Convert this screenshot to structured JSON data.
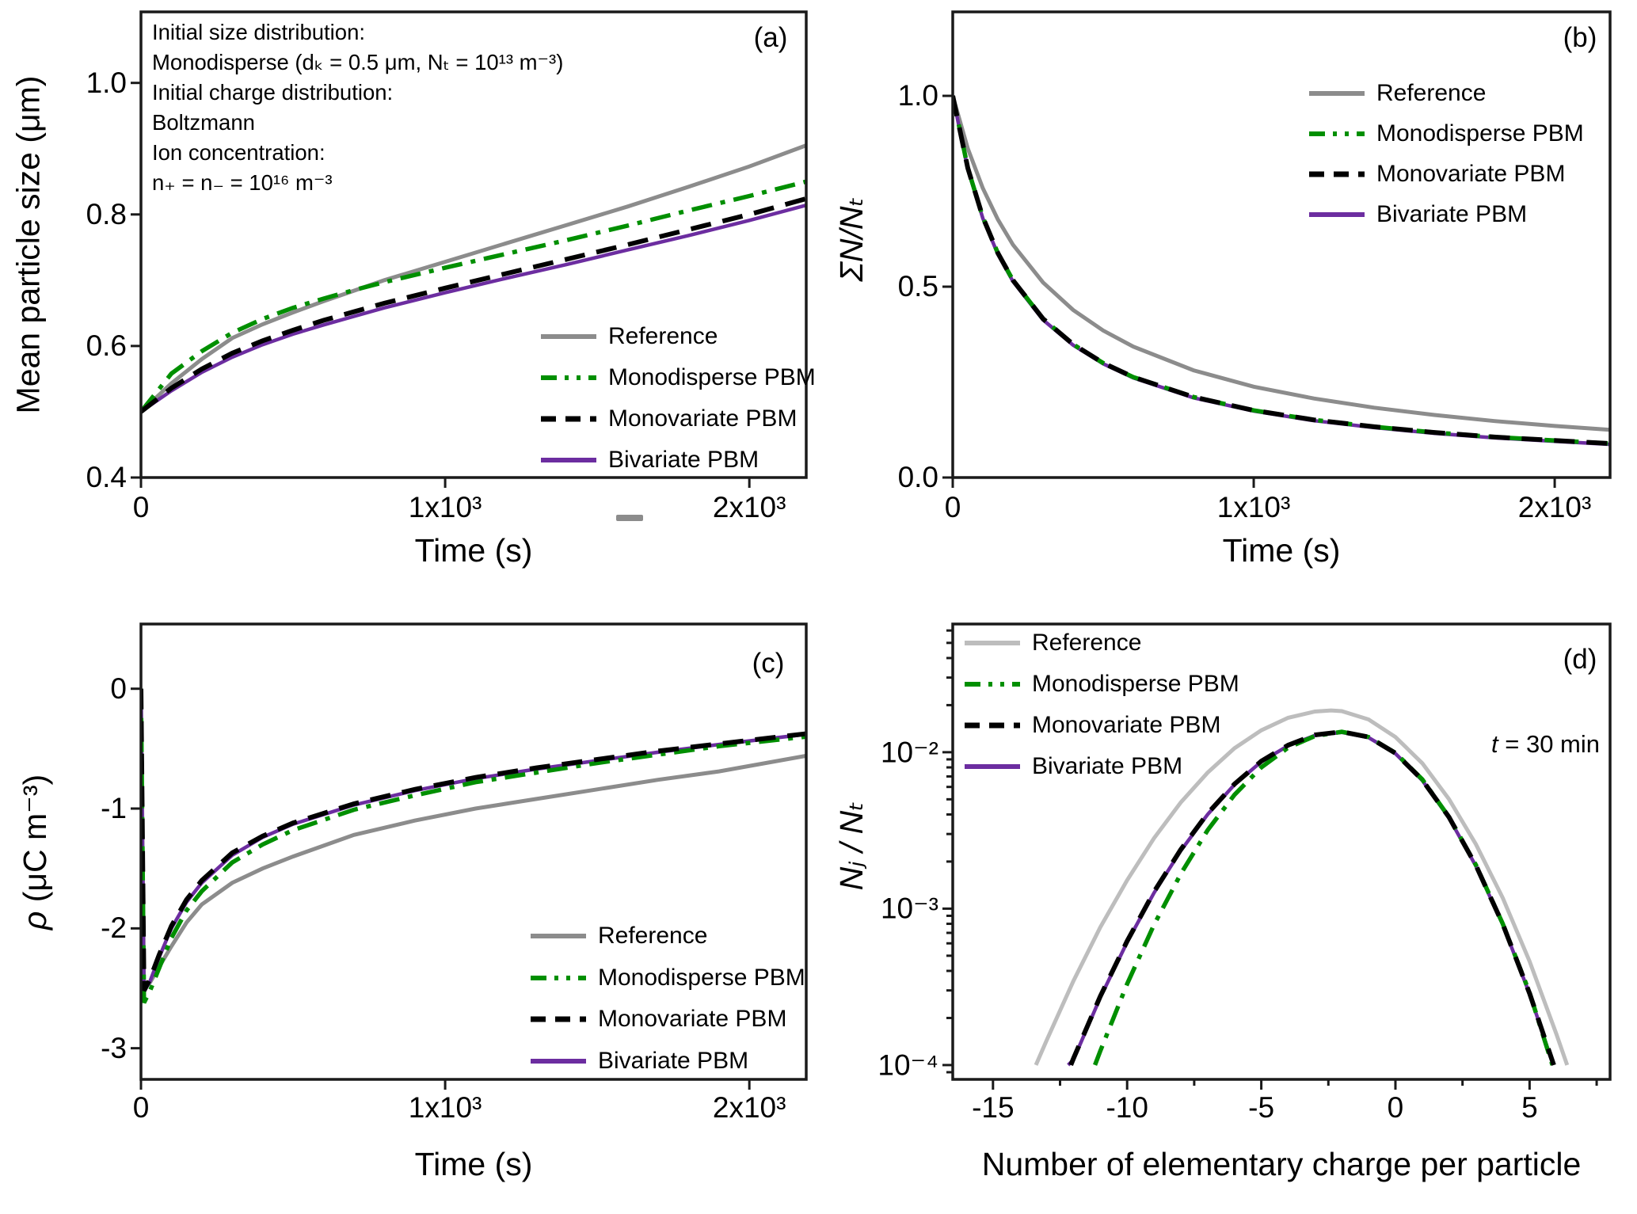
{
  "figure_background": "#ffffff",
  "colors": {
    "reference": "#8c8c8c",
    "reference_light": "#bdbdbd",
    "monodisperse": "#008f00",
    "monovariate": "#000000",
    "bivariate": "#6c2da0",
    "axis": "#1a1a1a"
  },
  "legend_labels": [
    "Reference",
    "Monodisperse PBM",
    "Monovariate PBM",
    "Bivariate PBM"
  ],
  "panels": {
    "a": {
      "letter": "(a)",
      "xlabel": "Time (s)",
      "ylabel": "Mean particle size (μm)",
      "annotation_lines": [
        "Initial size distribution:",
        "Monodisperse (dₖ = 0.5 μm, Nₜ = 10¹³ m⁻³)",
        "Initial charge distribution:",
        "Boltzmann",
        "Ion concentration:",
        "n₊ = n₋ = 10¹⁶ m⁻³"
      ]
    },
    "b": {
      "letter": "(b)",
      "xlabel": "Time (s)",
      "ylabel": "ΣN/Nₜ"
    },
    "c": {
      "letter": "(c)",
      "xlabel": "Time (s)",
      "ylabel_rho": "ρ",
      "ylabel_units": " (μC m⁻³)"
    },
    "d": {
      "letter": "(d)",
      "xlabel": "Number of elementary charge per particle",
      "ylabel": "Nⱼ / Nₜ",
      "time_label_var": "t",
      "time_label_rest": " = 30 min"
    }
  },
  "chart_data": [
    {
      "id": "a",
      "type": "line",
      "title": "(a)",
      "xlabel": "Time (s)",
      "ylabel": "Mean particle size (μm)",
      "xlim": [
        0,
        2187
      ],
      "ylim": [
        0.4,
        1.108
      ],
      "ylog": false,
      "grid": false,
      "legend_position": "lower-right",
      "xticks": [
        {
          "v": 0,
          "label": "0"
        },
        {
          "v": 1000,
          "label": "1x10³"
        },
        {
          "v": 2000,
          "label": "2x10³"
        }
      ],
      "yticks": [
        {
          "v": 0.4,
          "label": "0.4"
        },
        {
          "v": 0.6,
          "label": "0.6"
        },
        {
          "v": 0.8,
          "label": "0.8"
        },
        {
          "v": 1.0,
          "label": "1.0"
        }
      ],
      "xminor": [],
      "yminor": [],
      "draw_order": [
        0,
        3,
        1,
        2
      ],
      "series": [
        {
          "name": "Reference",
          "style": "solid",
          "color": "#8c8c8c",
          "lw": 5,
          "x": [
            0,
            100,
            200,
            300,
            400,
            500,
            600,
            700,
            800,
            1000,
            1200,
            1400,
            1600,
            1800,
            2000,
            2187
          ],
          "y": [
            0.5,
            0.543,
            0.58,
            0.612,
            0.633,
            0.651,
            0.668,
            0.684,
            0.7,
            0.728,
            0.756,
            0.784,
            0.812,
            0.842,
            0.873,
            0.905
          ]
        },
        {
          "name": "Monodisperse PBM",
          "style": "dashdot",
          "color": "#008f00",
          "lw": 5.5,
          "x": [
            0,
            100,
            200,
            300,
            400,
            500,
            600,
            700,
            800,
            1000,
            1200,
            1400,
            1600,
            1800,
            2000,
            2187
          ],
          "y": [
            0.5,
            0.558,
            0.592,
            0.62,
            0.641,
            0.658,
            0.672,
            0.685,
            0.697,
            0.719,
            0.74,
            0.761,
            0.783,
            0.806,
            0.828,
            0.85
          ]
        },
        {
          "name": "Monovariate PBM",
          "style": "dashed",
          "color": "#000000",
          "lw": 6,
          "x": [
            0,
            100,
            200,
            300,
            400,
            500,
            600,
            700,
            800,
            1000,
            1200,
            1400,
            1600,
            1800,
            2000,
            2187
          ],
          "y": [
            0.5,
            0.536,
            0.565,
            0.589,
            0.608,
            0.624,
            0.639,
            0.652,
            0.665,
            0.688,
            0.71,
            0.732,
            0.754,
            0.777,
            0.8,
            0.824
          ]
        },
        {
          "name": "Bivariate PBM",
          "style": "solid",
          "color": "#6c2da0",
          "lw": 4.5,
          "x": [
            0,
            100,
            200,
            300,
            400,
            500,
            600,
            700,
            800,
            1000,
            1200,
            1400,
            1600,
            1800,
            2000,
            2187
          ],
          "y": [
            0.5,
            0.532,
            0.56,
            0.583,
            0.602,
            0.618,
            0.632,
            0.645,
            0.658,
            0.681,
            0.703,
            0.724,
            0.746,
            0.768,
            0.791,
            0.814
          ]
        }
      ]
    },
    {
      "id": "b",
      "type": "line",
      "title": "(b)",
      "xlabel": "Time (s)",
      "ylabel": "ΣN/Nₜ",
      "xlim": [
        0,
        2184
      ],
      "ylim": [
        0.0,
        1.22
      ],
      "ylog": false,
      "grid": false,
      "legend_position": "upper-right",
      "xticks": [
        {
          "v": 0,
          "label": "0"
        },
        {
          "v": 1000,
          "label": "1x10³"
        },
        {
          "v": 2000,
          "label": "2x10³"
        }
      ],
      "yticks": [
        {
          "v": 0.0,
          "label": "0.0"
        },
        {
          "v": 0.5,
          "label": "0.5"
        },
        {
          "v": 1.0,
          "label": "1.0"
        }
      ],
      "xminor": [],
      "yminor": [],
      "draw_order": [
        0,
        3,
        1,
        2
      ],
      "series": [
        {
          "name": "Reference",
          "style": "solid",
          "color": "#8c8c8c",
          "lw": 5,
          "x": [
            0,
            50,
            100,
            150,
            200,
            300,
            400,
            500,
            600,
            800,
            1000,
            1200,
            1400,
            1600,
            1800,
            2000,
            2184
          ],
          "y": [
            1.0,
            0.862,
            0.758,
            0.676,
            0.61,
            0.511,
            0.439,
            0.385,
            0.343,
            0.281,
            0.238,
            0.207,
            0.183,
            0.164,
            0.148,
            0.135,
            0.125
          ]
        },
        {
          "name": "Monodisperse PBM",
          "style": "dashdot",
          "color": "#008f00",
          "lw": 5.5,
          "x": [
            0,
            50,
            100,
            150,
            200,
            300,
            400,
            500,
            600,
            800,
            1000,
            1200,
            1400,
            1600,
            1800,
            2000,
            2184
          ],
          "y": [
            1.0,
            0.811,
            0.682,
            0.588,
            0.517,
            0.416,
            0.349,
            0.3,
            0.263,
            0.211,
            0.176,
            0.151,
            0.133,
            0.118,
            0.106,
            0.097,
            0.089
          ]
        },
        {
          "name": "Monovariate PBM",
          "style": "dashed",
          "color": "#000000",
          "lw": 6,
          "x": [
            0,
            50,
            100,
            150,
            200,
            300,
            400,
            500,
            600,
            800,
            1000,
            1200,
            1400,
            1600,
            1800,
            2000,
            2184
          ],
          "y": [
            1.0,
            0.811,
            0.682,
            0.588,
            0.517,
            0.416,
            0.349,
            0.3,
            0.263,
            0.211,
            0.176,
            0.151,
            0.133,
            0.118,
            0.106,
            0.097,
            0.089
          ]
        },
        {
          "name": "Bivariate PBM",
          "style": "solid",
          "color": "#6c2da0",
          "lw": 4.5,
          "x": [
            0,
            50,
            100,
            150,
            200,
            300,
            400,
            500,
            600,
            800,
            1000,
            1200,
            1400,
            1600,
            1800,
            2000,
            2184
          ],
          "y": [
            1.0,
            0.808,
            0.679,
            0.585,
            0.514,
            0.413,
            0.347,
            0.298,
            0.261,
            0.209,
            0.174,
            0.149,
            0.131,
            0.116,
            0.104,
            0.095,
            0.087
          ]
        }
      ]
    },
    {
      "id": "c",
      "type": "line",
      "title": "(c)",
      "xlabel": "Time (s)",
      "ylabel": "ρ (μC m⁻³)",
      "xlim": [
        0,
        2187
      ],
      "ylim": [
        -3.26,
        0.54
      ],
      "ylog": false,
      "grid": false,
      "legend_position": "lower-right",
      "xticks": [
        {
          "v": 0,
          "label": "0"
        },
        {
          "v": 1000,
          "label": "1x10³"
        },
        {
          "v": 2000,
          "label": "2x10³"
        }
      ],
      "yticks": [
        {
          "v": 0,
          "label": "0"
        },
        {
          "v": -1,
          "label": "-1"
        },
        {
          "v": -2,
          "label": "-2"
        },
        {
          "v": -3,
          "label": "-3"
        }
      ],
      "xminor": [],
      "yminor": [],
      "draw_order": [
        0,
        3,
        1,
        2
      ],
      "series": [
        {
          "name": "Reference",
          "style": "solid",
          "color": "#8c8c8c",
          "lw": 5,
          "x": [
            0,
            10,
            30,
            60,
            100,
            150,
            200,
            300,
            400,
            500,
            700,
            900,
            1100,
            1300,
            1500,
            1700,
            1900,
            2187
          ],
          "y": [
            0,
            -2.5,
            -2.45,
            -2.32,
            -2.15,
            -1.95,
            -1.8,
            -1.62,
            -1.5,
            -1.4,
            -1.22,
            -1.1,
            -1.0,
            -0.92,
            -0.84,
            -0.76,
            -0.69,
            -0.56
          ]
        },
        {
          "name": "Monodisperse PBM",
          "style": "dashdot",
          "color": "#008f00",
          "lw": 5.5,
          "x": [
            0,
            10,
            30,
            60,
            100,
            150,
            200,
            300,
            400,
            500,
            700,
            900,
            1100,
            1300,
            1500,
            1700,
            1900,
            2187
          ],
          "y": [
            0,
            -2.62,
            -2.52,
            -2.33,
            -2.08,
            -1.85,
            -1.69,
            -1.45,
            -1.3,
            -1.18,
            -1.01,
            -0.89,
            -0.78,
            -0.7,
            -0.62,
            -0.55,
            -0.48,
            -0.4
          ]
        },
        {
          "name": "Monovariate PBM",
          "style": "dashed",
          "color": "#000000",
          "lw": 6,
          "x": [
            0,
            10,
            30,
            60,
            100,
            150,
            200,
            300,
            400,
            500,
            700,
            900,
            1100,
            1300,
            1500,
            1700,
            1900,
            2187
          ],
          "y": [
            0,
            -2.52,
            -2.42,
            -2.22,
            -1.98,
            -1.76,
            -1.6,
            -1.37,
            -1.23,
            -1.12,
            -0.96,
            -0.84,
            -0.74,
            -0.66,
            -0.59,
            -0.52,
            -0.46,
            -0.375
          ]
        },
        {
          "name": "Bivariate PBM",
          "style": "solid",
          "color": "#6c2da0",
          "lw": 4.5,
          "x": [
            0,
            10,
            30,
            60,
            100,
            150,
            200,
            300,
            400,
            500,
            700,
            900,
            1100,
            1300,
            1500,
            1700,
            1900,
            2187
          ],
          "y": [
            0,
            -2.53,
            -2.44,
            -2.24,
            -2.0,
            -1.78,
            -1.62,
            -1.39,
            -1.24,
            -1.13,
            -0.97,
            -0.85,
            -0.75,
            -0.67,
            -0.6,
            -0.53,
            -0.465,
            -0.38
          ]
        }
      ]
    },
    {
      "id": "d",
      "type": "line",
      "title": "(d)",
      "subtitle": "t = 30 min",
      "xlabel": "Number of elementary charge per particle",
      "ylabel": "Nⱼ / Nₜ",
      "xlim": [
        -16.5,
        8.0
      ],
      "ylim": [
        8.1e-05,
        0.066
      ],
      "ylog": true,
      "grid": false,
      "legend_position": "upper-left",
      "xticks": [
        {
          "v": -15,
          "label": "-15"
        },
        {
          "v": -10,
          "label": "-10"
        },
        {
          "v": -5,
          "label": "-5"
        },
        {
          "v": 0,
          "label": "0"
        },
        {
          "v": 5,
          "label": "5"
        }
      ],
      "yticks": [
        {
          "v": 0.01,
          "label": "10⁻²"
        },
        {
          "v": 0.001,
          "label": "10⁻³"
        },
        {
          "v": 0.0001,
          "label": "10⁻⁴"
        }
      ],
      "xminor": [
        -12.5,
        -7.5,
        -2.5,
        2.5,
        7.5
      ],
      "yminor": "log",
      "draw_order": [
        0,
        3,
        1,
        2
      ],
      "series": [
        {
          "name": "Reference",
          "style": "solid",
          "color": "#bdbdbd",
          "lw": 5,
          "x": [
            -13.4,
            -13,
            -12,
            -11,
            -10,
            -9,
            -8,
            -7,
            -6,
            -5,
            -4,
            -3,
            -2.4,
            -2,
            -1,
            0,
            1,
            2,
            3,
            4,
            5,
            6,
            6.4
          ],
          "y": [
            0.0001,
            0.000144,
            0.000345,
            0.00076,
            0.00152,
            0.00282,
            0.00478,
            0.0074,
            0.0106,
            0.0138,
            0.0166,
            0.0182,
            0.0185,
            0.0183,
            0.0162,
            0.0125,
            0.0085,
            0.005,
            0.00258,
            0.00117,
            0.00046,
            0.000158,
            0.0001
          ]
        },
        {
          "name": "Monodisperse PBM",
          "style": "dashdot",
          "color": "#008f00",
          "lw": 5.5,
          "x": [
            -11.2,
            -11,
            -10,
            -9,
            -8,
            -7,
            -6,
            -5,
            -4,
            -3,
            -2,
            -1,
            0,
            1,
            2,
            3,
            4,
            5,
            5.85
          ],
          "y": [
            0.0001,
            0.000123,
            0.00033,
            0.000787,
            0.00167,
            0.00317,
            0.00534,
            0.008,
            0.0107,
            0.0127,
            0.0135,
            0.0125,
            0.0099,
            0.0067,
            0.00385,
            0.0019,
            0.0008,
            0.00029,
            0.0001
          ]
        },
        {
          "name": "Monovariate PBM",
          "style": "dashed",
          "color": "#000000",
          "lw": 6,
          "x": [
            -12.1,
            -12,
            -11,
            -10,
            -9,
            -8,
            -7,
            -6,
            -5,
            -4,
            -3,
            -2,
            -1,
            0,
            1,
            2,
            3,
            4,
            5,
            5.9
          ],
          "y": [
            0.0001,
            0.00011,
            0.000275,
            0.00062,
            0.00128,
            0.00239,
            0.00406,
            0.00626,
            0.00876,
            0.0111,
            0.0129,
            0.0135,
            0.0125,
            0.00986,
            0.00665,
            0.00384,
            0.00189,
            0.000797,
            0.000287,
            0.0001
          ]
        },
        {
          "name": "Bivariate PBM",
          "style": "solid",
          "color": "#6c2da0",
          "lw": 4.5,
          "x": [
            -12.2,
            -12,
            -11,
            -10,
            -9,
            -8,
            -7,
            -6,
            -5,
            -4,
            -3,
            -2,
            -1,
            0,
            1,
            2,
            3,
            4,
            5,
            5.88
          ],
          "y": [
            0.0001,
            0.000108,
            0.00027,
            0.00061,
            0.00126,
            0.00235,
            0.004,
            0.0062,
            0.0087,
            0.011,
            0.0128,
            0.0134,
            0.0124,
            0.0098,
            0.0066,
            0.0038,
            0.00187,
            0.00079,
            0.000285,
            0.0001
          ]
        }
      ]
    }
  ],
  "artifacts": {
    "stray_gray_dash_below_panel_a_axis": true
  }
}
